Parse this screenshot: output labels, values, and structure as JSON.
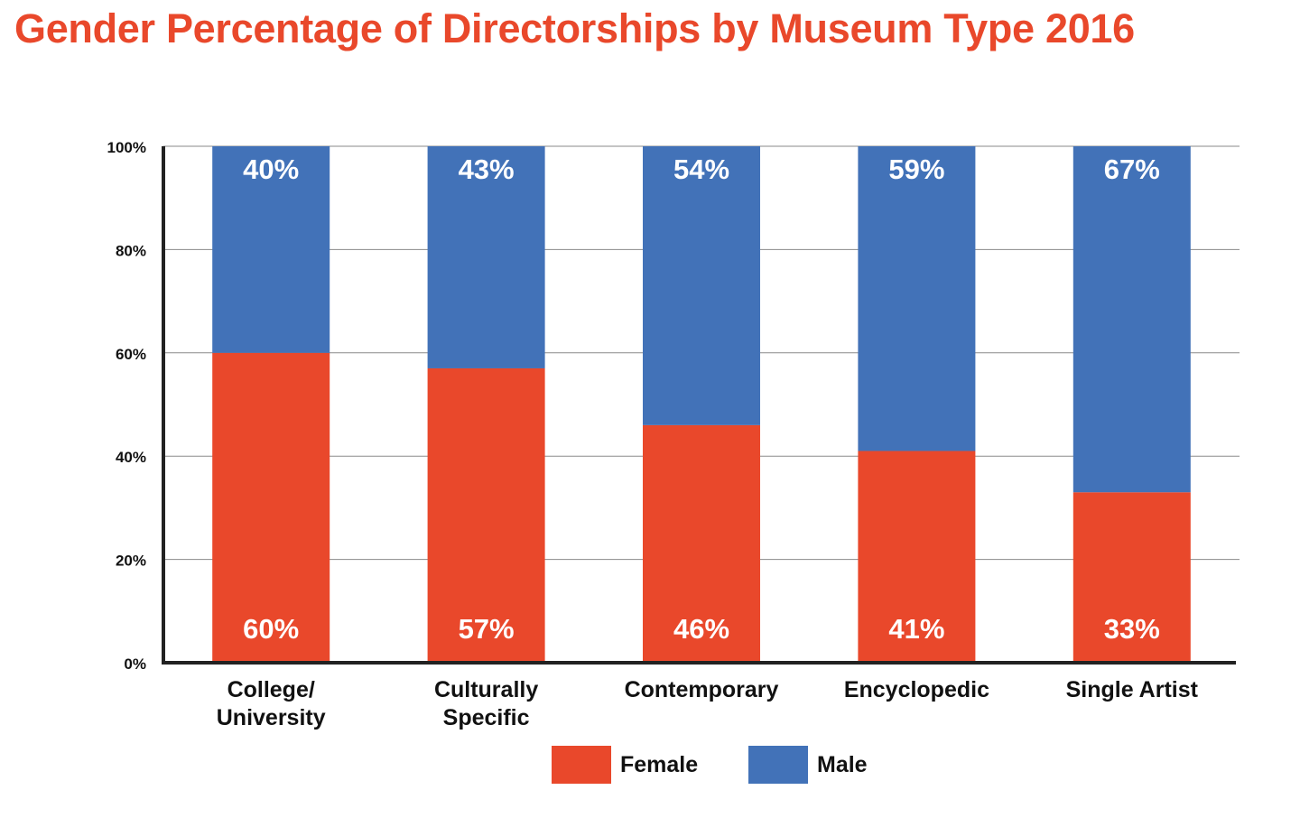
{
  "colors": {
    "female": "#E9482B",
    "male": "#4272B8",
    "title": "#E9482B",
    "axis": "#222222",
    "grid": "#8a8a8a",
    "bar_label": "#ffffff",
    "text": "#111111"
  },
  "chart_data": {
    "type": "bar",
    "stacked": true,
    "title": "Gender Percentage of Directorships by Museum Type 2016",
    "xlabel": "",
    "ylabel": "",
    "ylim": [
      0,
      100
    ],
    "yticks": [
      "0%",
      "20%",
      "40%",
      "60%",
      "80%",
      "100%"
    ],
    "grid": true,
    "legend_position": "bottom",
    "categories": [
      [
        "College/",
        "University"
      ],
      [
        "Culturally",
        "Specific"
      ],
      [
        "Contemporary"
      ],
      [
        "Encyclopedic"
      ],
      [
        "Single Artist"
      ]
    ],
    "series": [
      {
        "name": "Female",
        "color_key": "female",
        "values": [
          60,
          57,
          46,
          41,
          33
        ],
        "labels": [
          "60%",
          "57%",
          "46%",
          "41%",
          "33%"
        ]
      },
      {
        "name": "Male",
        "color_key": "male",
        "values": [
          40,
          43,
          54,
          59,
          67
        ],
        "labels": [
          "40%",
          "43%",
          "54%",
          "59%",
          "67%"
        ]
      }
    ]
  }
}
